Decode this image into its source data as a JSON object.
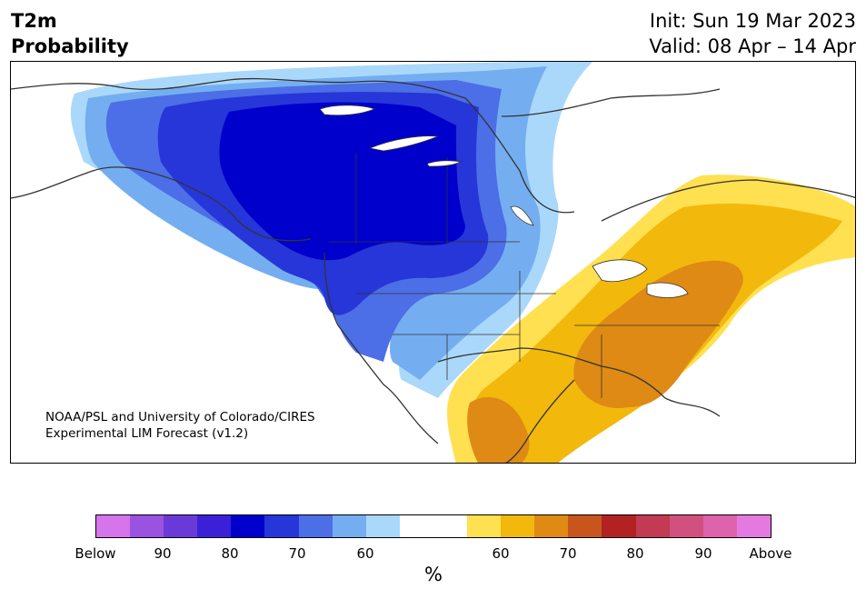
{
  "title": {
    "variable": "T2m",
    "kind": "Probability",
    "init": "Init: Sun 19 Mar 2023",
    "valid": "Valid: 08 Apr – 14 Apr"
  },
  "credit": {
    "line1": "NOAA/PSL and University of Colorado/CIRES",
    "line2": "Experimental LIM Forecast (v1.2)"
  },
  "map": {
    "region": "North America",
    "colors": {
      "below_90": "#9a52e0",
      "below_80": "#3c20d8",
      "below_75": "#0000cc",
      "below_70": "#2636d8",
      "below_65": "#4c6ee6",
      "below_60": "#74aef0",
      "below_55": "#aad8fa",
      "near_normal": "#ffffff",
      "above_55": "#ffe050",
      "above_60": "#f2b80c",
      "above_65": "#de8a14",
      "above_70": "#c8561c",
      "land_outline": "#333333"
    }
  },
  "colorbar": {
    "colors": [
      "#d674ec",
      "#9a52e0",
      "#6a3ad8",
      "#3c20d8",
      "#0000cc",
      "#2636d8",
      "#4c6ee6",
      "#74aef0",
      "#aad8fa",
      "#ffffff",
      "#ffffff",
      "#ffe050",
      "#f2b80c",
      "#de8a14",
      "#c8561c",
      "#b22222",
      "#c23a54",
      "#d2507e",
      "#de62ac",
      "#e47ae0"
    ],
    "ticks": [
      "Below",
      "90",
      "80",
      "70",
      "60",
      "60",
      "70",
      "80",
      "90",
      "Above"
    ],
    "unit": "%"
  }
}
